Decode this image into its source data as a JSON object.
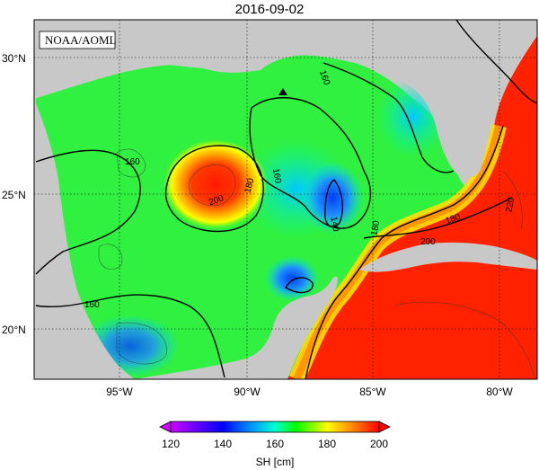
{
  "title": "2016-09-02",
  "source_label": "NOAA/AOML",
  "map": {
    "variable": "SH",
    "units": "cm",
    "lat_labels": [
      "30°N",
      "25°N",
      "20°N"
    ],
    "lon_labels": [
      "95°W",
      "90°W",
      "85°W",
      "80°W"
    ],
    "contour_labels": [
      "160",
      "160",
      "160",
      "160",
      "180",
      "180",
      "200",
      "140",
      "180",
      "200",
      "220"
    ],
    "marker": "triangle-marker"
  },
  "colorbar": {
    "label": "SH [cm]",
    "ticks": [
      "120",
      "140",
      "160",
      "180",
      "200"
    ],
    "colors": [
      "#cc00ff",
      "#7a00ff",
      "#0000ff",
      "#0050ff",
      "#00a0ff",
      "#00ffff",
      "#00ff80",
      "#00ff00",
      "#a0ff00",
      "#ffff00",
      "#ffc800",
      "#ff8000",
      "#ff3000",
      "#ff0000"
    ]
  },
  "colors": {
    "land": "#c8c8c8",
    "warm": "#ff2a00",
    "cool": "#1e78ff",
    "mid": "#28f028"
  }
}
